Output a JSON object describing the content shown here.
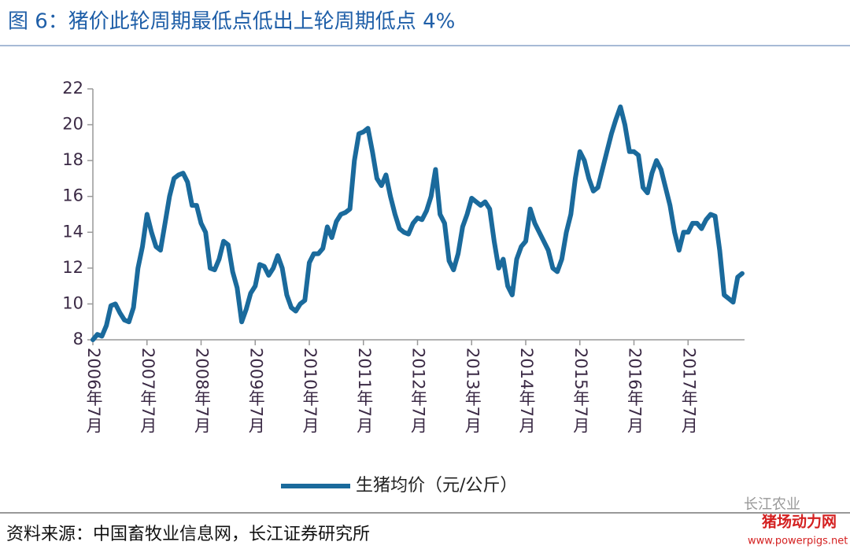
{
  "chart_data": {
    "type": "line",
    "title": "图 6：猪价此轮周期最低点低出上轮周期低点 4%",
    "source": "资料来源：中国畜牧业信息网，长江证券研究所",
    "watermarks": [
      "长江农业",
      "猪场动力网",
      "www.powerpigs.net"
    ],
    "categories": [
      "2006年7月",
      null,
      null,
      null,
      null,
      null,
      null,
      null,
      null,
      null,
      null,
      null,
      "2007年7月",
      null,
      null,
      null,
      null,
      null,
      null,
      null,
      null,
      null,
      null,
      null,
      "2008年7月",
      null,
      null,
      null,
      null,
      null,
      null,
      null,
      null,
      null,
      null,
      null,
      "2009年7月",
      null,
      null,
      null,
      null,
      null,
      null,
      null,
      null,
      null,
      null,
      null,
      "2010年7月",
      null,
      null,
      null,
      null,
      null,
      null,
      null,
      null,
      null,
      null,
      null,
      "2011年7月",
      null,
      null,
      null,
      null,
      null,
      null,
      null,
      null,
      null,
      null,
      null,
      "2012年7月",
      null,
      null,
      null,
      null,
      null,
      null,
      null,
      null,
      null,
      null,
      null,
      "2013年7月",
      null,
      null,
      null,
      null,
      null,
      null,
      null,
      null,
      null,
      null,
      null,
      "2014年7月",
      null,
      null,
      null,
      null,
      null,
      null,
      null,
      null,
      null,
      null,
      null,
      "2015年7月",
      null,
      null,
      null,
      null,
      null,
      null,
      null,
      null,
      null,
      null,
      null,
      "2016年7月",
      null,
      null,
      null,
      null,
      null,
      null,
      null,
      null,
      null,
      null,
      null,
      "2017年7月",
      null,
      null,
      null,
      null,
      null,
      null,
      null,
      null,
      null,
      null,
      null,
      null
    ],
    "series": [
      {
        "name": "生猪均价（元/公斤）",
        "color": "#1a6a9c",
        "values": [
          8,
          8.3,
          8.2,
          8.8,
          9.9,
          10,
          9.5,
          9.1,
          9.0,
          9.8,
          12,
          13.2,
          15,
          14,
          13.2,
          13.0,
          14.5,
          16.0,
          17.0,
          17.2,
          17.3,
          16.8,
          15.5,
          15.5,
          14.5,
          14.0,
          12.0,
          11.9,
          12.5,
          13.5,
          13.3,
          11.8,
          10.9,
          9.0,
          9.7,
          10.6,
          11.0,
          12.2,
          12.1,
          11.6,
          12.0,
          12.7,
          12.0,
          10.5,
          9.8,
          9.6,
          10.0,
          10.2,
          12.3,
          12.8,
          12.8,
          13.1,
          14.3,
          13.7,
          14.6,
          15.0,
          15.1,
          15.3,
          18.0,
          19.5,
          19.6,
          19.8,
          18.5,
          17.0,
          16.6,
          17.2,
          16.0,
          15.0,
          14.2,
          14.0,
          13.9,
          14.5,
          14.8,
          14.7,
          15.2,
          16.0,
          17.5,
          15.0,
          14.5,
          12.4,
          11.9,
          12.8,
          14.3,
          15.0,
          15.9,
          15.7,
          15.5,
          15.7,
          15.3,
          13.5,
          12.0,
          12.5,
          11.0,
          10.5,
          12.5,
          13.2,
          13.5,
          15.3,
          14.5,
          14.0,
          13.5,
          13.0,
          12.0,
          11.8,
          12.5,
          14.0,
          15.0,
          17.0,
          18.5,
          18.0,
          17.0,
          16.3,
          16.5,
          17.5,
          18.5,
          19.5,
          20.3,
          21.0,
          20.0,
          18.5,
          18.5,
          18.3,
          16.5,
          16.2,
          17.3,
          18.0,
          17.5,
          16.5,
          15.5,
          14.0,
          13.0,
          14.0,
          14.0,
          14.5,
          14.5,
          14.2,
          14.7,
          15.0,
          14.9,
          13.0,
          10.5,
          10.3,
          10.1,
          11.5,
          11.7
        ]
      }
    ],
    "ylim": [
      8,
      22
    ],
    "yticks": [
      8,
      10,
      12,
      14,
      16,
      18,
      20,
      22
    ],
    "grid": false,
    "legend": "bottom"
  }
}
